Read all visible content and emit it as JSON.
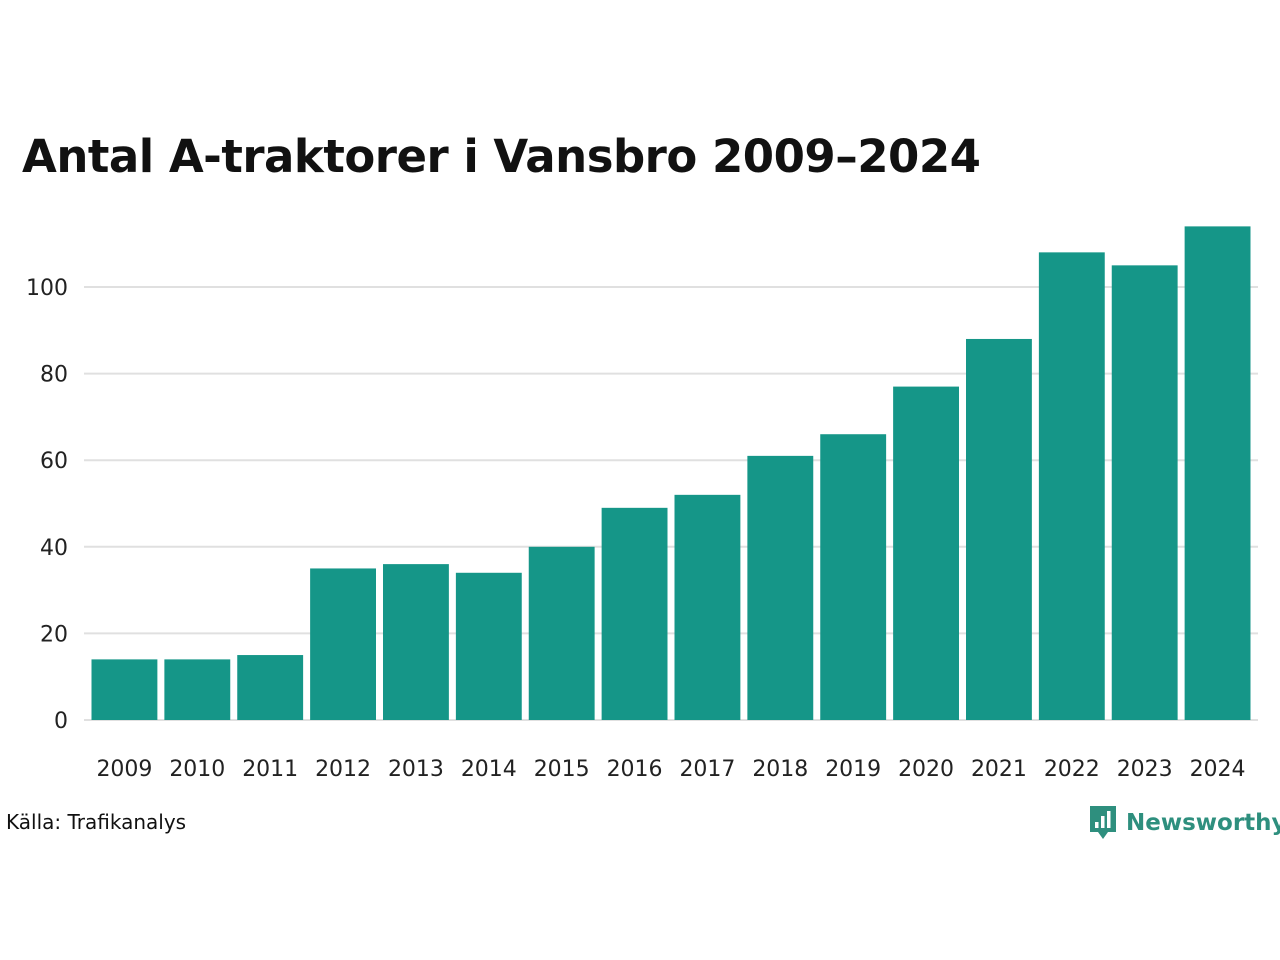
{
  "title": "Antal A-traktorer i Vansbro 2009–2024",
  "source": "Källa: Trafikanalys",
  "brand": {
    "name": "Newsworthy",
    "icon": "newsworthy-logo-icon",
    "color": "#2e8f7e"
  },
  "chart_data": {
    "type": "bar",
    "title": "Antal A-traktorer i Vansbro 2009–2024",
    "xlabel": "",
    "ylabel": "",
    "categories": [
      "2009",
      "2010",
      "2011",
      "2012",
      "2013",
      "2014",
      "2015",
      "2016",
      "2017",
      "2018",
      "2019",
      "2020",
      "2021",
      "2022",
      "2023",
      "2024"
    ],
    "values": [
      14,
      14,
      15,
      35,
      36,
      34,
      40,
      49,
      52,
      61,
      66,
      77,
      88,
      108,
      105,
      114
    ],
    "ylim": [
      0,
      115
    ],
    "yticks": [
      0,
      20,
      40,
      60,
      80,
      100
    ],
    "grid": true,
    "bar_color": "#159688",
    "grid_color": "#e0e0e0"
  }
}
